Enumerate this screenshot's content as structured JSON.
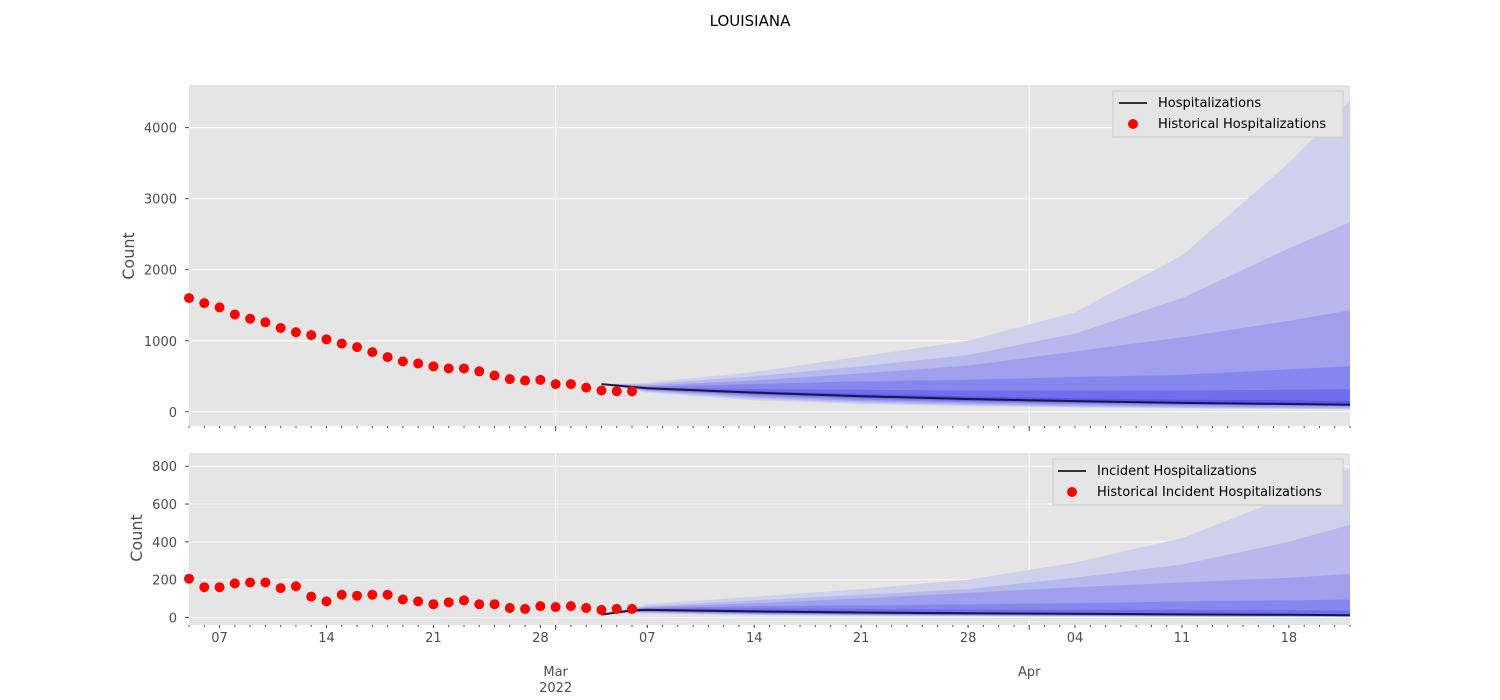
{
  "title": "LOUISIANA",
  "colors": {
    "panel_bg": "#e5e5e5",
    "grid": "#ffffff",
    "median_line": "#1a1a3a",
    "historical": "#ff0000",
    "band_outer": "#cfd0ec",
    "band_inner": "#5656f0"
  },
  "x_axis": {
    "start": "2022-02-05",
    "end": "2022-04-22",
    "day_ticks": [
      {
        "date": "2022-02-07",
        "label": "07"
      },
      {
        "date": "2022-02-14",
        "label": "14"
      },
      {
        "date": "2022-02-21",
        "label": "21"
      },
      {
        "date": "2022-02-28",
        "label": "28"
      },
      {
        "date": "2022-03-07",
        "label": "07"
      },
      {
        "date": "2022-03-14",
        "label": "14"
      },
      {
        "date": "2022-03-21",
        "label": "21"
      },
      {
        "date": "2022-03-28",
        "label": "28"
      },
      {
        "date": "2022-04-04",
        "label": "04"
      },
      {
        "date": "2022-04-11",
        "label": "11"
      },
      {
        "date": "2022-04-18",
        "label": "18"
      }
    ],
    "month_ticks": [
      {
        "date": "2022-03-01",
        "label": "Mar",
        "sublabel": "2022"
      },
      {
        "date": "2022-04-01",
        "label": "Apr",
        "sublabel": ""
      }
    ]
  },
  "chart_data": [
    {
      "type": "line",
      "title": "LOUISIANA",
      "ylabel": "Count",
      "xlabel": "",
      "ylim": [
        -200,
        4600
      ],
      "yticks": [
        0,
        1000,
        2000,
        3000,
        4000
      ],
      "grid": true,
      "legend_position": "top-right",
      "legend": [
        "Hospitalizations",
        "Historical Hospitalizations"
      ],
      "historical": {
        "name": "Historical Hospitalizations",
        "x": [
          "2022-02-05",
          "2022-02-06",
          "2022-02-07",
          "2022-02-08",
          "2022-02-09",
          "2022-02-10",
          "2022-02-11",
          "2022-02-12",
          "2022-02-13",
          "2022-02-14",
          "2022-02-15",
          "2022-02-16",
          "2022-02-17",
          "2022-02-18",
          "2022-02-19",
          "2022-02-20",
          "2022-02-21",
          "2022-02-22",
          "2022-02-23",
          "2022-02-24",
          "2022-02-25",
          "2022-02-26",
          "2022-02-27",
          "2022-02-28",
          "2022-03-01",
          "2022-03-02",
          "2022-03-03",
          "2022-03-04",
          "2022-03-05",
          "2022-03-06"
        ],
        "y": [
          1600,
          1530,
          1470,
          1370,
          1310,
          1260,
          1180,
          1120,
          1080,
          1020,
          960,
          910,
          840,
          770,
          710,
          680,
          640,
          610,
          610,
          570,
          510,
          460,
          440,
          450,
          390,
          390,
          340,
          300,
          290,
          290
        ]
      },
      "forecast": {
        "name": "Hospitalizations",
        "x": [
          "2022-03-04",
          "2022-03-07",
          "2022-03-14",
          "2022-03-21",
          "2022-03-28",
          "2022-04-04",
          "2022-04-11",
          "2022-04-18",
          "2022-04-22"
        ],
        "median": [
          390,
          330,
          270,
          220,
          180,
          150,
          125,
          110,
          100
        ],
        "bands": [
          {
            "lower": [
              390,
              270,
              160,
              110,
              80,
              60,
              50,
              40,
              35
            ],
            "upper": [
              390,
              410,
              560,
              780,
              1000,
              1400,
              2200,
              3500,
              4380
            ]
          },
          {
            "lower": [
              390,
              285,
              185,
              130,
              95,
              75,
              60,
              50,
              45
            ],
            "upper": [
              390,
              390,
              500,
              640,
              800,
              1100,
              1600,
              2300,
              2670
            ]
          },
          {
            "lower": [
              390,
              300,
              210,
              150,
              115,
              90,
              75,
              65,
              60
            ],
            "upper": [
              390,
              370,
              440,
              540,
              650,
              850,
              1050,
              1280,
              1430
            ]
          },
          {
            "lower": [
              390,
              310,
              230,
              170,
              135,
              110,
              95,
              85,
              80
            ],
            "upper": [
              390,
              355,
              390,
              430,
              450,
              490,
              520,
              600,
              640
            ]
          },
          {
            "lower": [
              390,
              318,
              245,
              190,
              150,
              125,
              105,
              95,
              90
            ],
            "upper": [
              390,
              345,
              320,
              310,
              300,
              300,
              300,
              310,
              320
            ]
          },
          {
            "lower": [
              390,
              325,
              258,
              205,
              165,
              138,
              115,
              102,
              95
            ],
            "upper": [
              390,
              338,
              290,
              250,
              215,
              190,
              170,
              160,
              150
            ]
          }
        ]
      }
    },
    {
      "type": "line",
      "ylabel": "Count",
      "xlabel": "",
      "ylim": [
        -40,
        870
      ],
      "yticks": [
        0,
        200,
        400,
        600,
        800
      ],
      "grid": true,
      "legend_position": "top-right",
      "legend": [
        "Incident Hospitalizations",
        "Historical Incident Hospitalizations"
      ],
      "historical": {
        "name": "Historical Incident Hospitalizations",
        "x": [
          "2022-02-05",
          "2022-02-06",
          "2022-02-07",
          "2022-02-08",
          "2022-02-09",
          "2022-02-10",
          "2022-02-11",
          "2022-02-12",
          "2022-02-13",
          "2022-02-14",
          "2022-02-15",
          "2022-02-16",
          "2022-02-17",
          "2022-02-18",
          "2022-02-19",
          "2022-02-20",
          "2022-02-21",
          "2022-02-22",
          "2022-02-23",
          "2022-02-24",
          "2022-02-25",
          "2022-02-26",
          "2022-02-27",
          "2022-02-28",
          "2022-03-01",
          "2022-03-02",
          "2022-03-03",
          "2022-03-04",
          "2022-03-05",
          "2022-03-06"
        ],
        "y": [
          205,
          160,
          160,
          180,
          185,
          185,
          155,
          165,
          110,
          85,
          120,
          115,
          120,
          120,
          95,
          85,
          70,
          80,
          90,
          70,
          70,
          50,
          45,
          60,
          55,
          60,
          50,
          40,
          45,
          45
        ]
      },
      "forecast": {
        "name": "Incident Hospitalizations",
        "x": [
          "2022-03-04",
          "2022-03-06",
          "2022-03-07",
          "2022-03-14",
          "2022-03-21",
          "2022-03-28",
          "2022-04-04",
          "2022-04-11",
          "2022-04-18",
          "2022-04-22"
        ],
        "median": [
          15,
          38,
          40,
          32,
          26,
          22,
          19,
          16,
          14,
          12
        ],
        "bands": [
          {
            "lower": [
              15,
              22,
              20,
              12,
              8,
              6,
              4,
              3,
              2,
              2
            ],
            "upper": [
              15,
              50,
              70,
              110,
              150,
              200,
              290,
              420,
              640,
              790
            ]
          },
          {
            "lower": [
              15,
              26,
              24,
              15,
              10,
              8,
              6,
              5,
              4,
              3
            ],
            "upper": [
              15,
              48,
              60,
              90,
              120,
              150,
              210,
              280,
              400,
              490
            ]
          },
          {
            "lower": [
              15,
              29,
              28,
              18,
              13,
              10,
              8,
              7,
              6,
              5
            ],
            "upper": [
              15,
              46,
              55,
              75,
              100,
              130,
              160,
              185,
              210,
              230
            ]
          },
          {
            "lower": [
              15,
              32,
              31,
              22,
              16,
              13,
              11,
              9,
              8,
              7
            ],
            "upper": [
              15,
              44,
              50,
              60,
              65,
              70,
              75,
              85,
              90,
              95
            ]
          },
          {
            "lower": [
              15,
              34,
              34,
              25,
              19,
              16,
              13,
              11,
              10,
              9
            ],
            "upper": [
              15,
              42,
              46,
              48,
              45,
              42,
              40,
              40,
              38,
              36
            ]
          },
          {
            "lower": [
              15,
              36,
              37,
              28,
              22,
              18,
              15,
              13,
              11,
              10
            ],
            "upper": [
              15,
              40,
              43,
              38,
              32,
              27,
              23,
              21,
              19,
              17
            ]
          }
        ]
      }
    }
  ]
}
